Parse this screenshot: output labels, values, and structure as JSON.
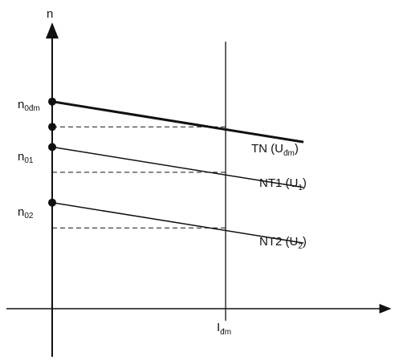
{
  "chart_data": {
    "type": "line",
    "title": "",
    "xlabel": "Iđm",
    "ylabel": "n",
    "y_ticks": [
      {
        "label": "n0đm",
        "base": "n",
        "sub": "0đm"
      },
      {
        "label": "n01",
        "base": "n",
        "sub": "01"
      },
      {
        "label": "n02",
        "base": "n",
        "sub": "02"
      }
    ],
    "x_marker": {
      "label": "Iđm",
      "base": "I",
      "sub": "đm"
    },
    "series": [
      {
        "name": "TN (Uđm)",
        "base": "TN (U",
        "sub": "đm",
        "close": ")",
        "start": 0.82,
        "end": 0.66,
        "dashed_level": 0.72,
        "emphasis": "bold"
      },
      {
        "name": "NT1 (U1)",
        "base": "NT1 (U",
        "sub": "1",
        "close": ")",
        "start": 0.64,
        "end": 0.48,
        "dashed_level": 0.54,
        "emphasis": "normal"
      },
      {
        "name": "NT2 (U2)",
        "base": "NT2 (U",
        "sub": "2",
        "close": ")",
        "start": 0.42,
        "end": 0.26,
        "dashed_level": 0.32,
        "emphasis": "normal"
      }
    ],
    "grid": false,
    "legend": "none"
  }
}
